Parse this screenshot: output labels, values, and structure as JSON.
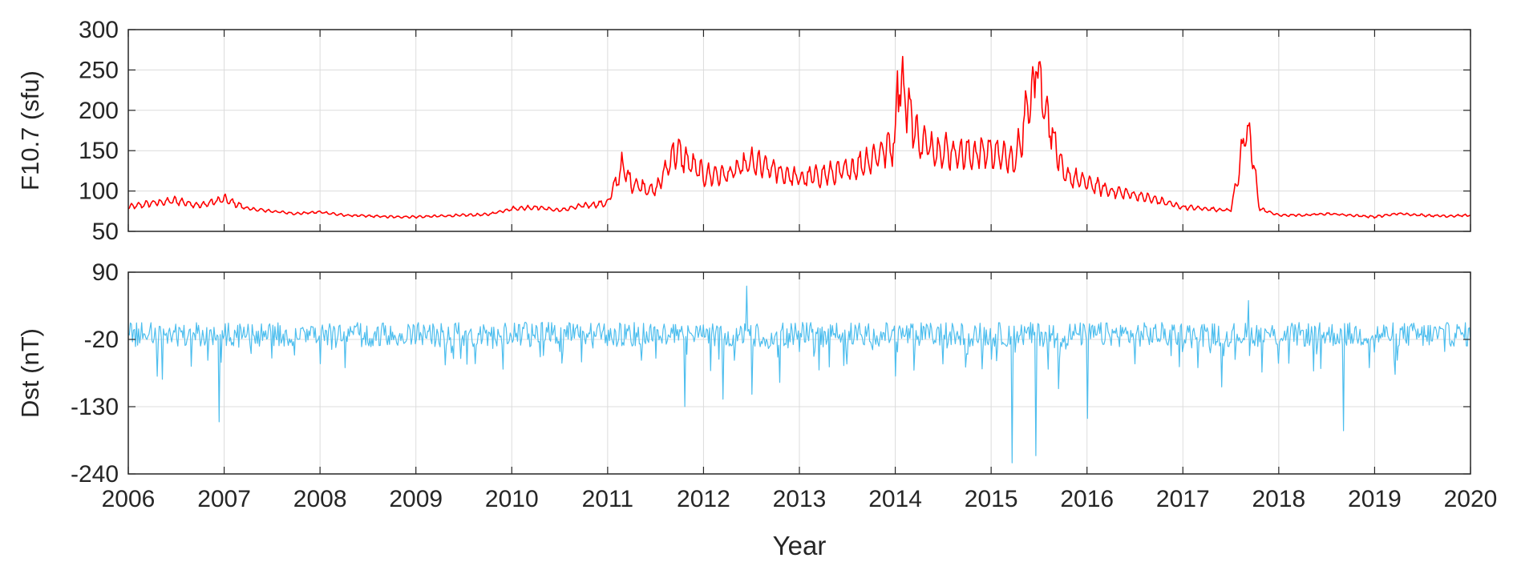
{
  "chart_data": [
    {
      "type": "line",
      "ylabel": "F10.7 (sfu)",
      "xlabel": "",
      "xlim": [
        2006,
        2020
      ],
      "ylim": [
        50,
        300
      ],
      "xticks": [
        2006,
        2007,
        2008,
        2009,
        2010,
        2011,
        2012,
        2013,
        2014,
        2015,
        2016,
        2017,
        2018,
        2019,
        2020
      ],
      "yticks": [
        50,
        100,
        150,
        200,
        250,
        300
      ],
      "ytick_labels": [
        "50",
        "100",
        "150",
        "200",
        "250",
        "300"
      ],
      "grid": true,
      "series": [
        {
          "color": "#ff0000",
          "x": [
            2006.0,
            2006.25,
            2006.5,
            2006.75,
            2007.0,
            2007.25,
            2007.5,
            2007.75,
            2008.0,
            2008.25,
            2008.5,
            2008.75,
            2009.0,
            2009.25,
            2009.5,
            2009.75,
            2010.0,
            2010.25,
            2010.5,
            2010.75,
            2011.0,
            2011.15,
            2011.25,
            2011.5,
            2011.7,
            2012.0,
            2012.25,
            2012.5,
            2012.75,
            2013.0,
            2013.25,
            2013.5,
            2013.75,
            2014.0,
            2014.02,
            2014.25,
            2014.5,
            2014.8,
            2015.0,
            2015.25,
            2015.47,
            2015.75,
            2016.0,
            2016.25,
            2016.5,
            2016.75,
            2017.0,
            2017.25,
            2017.5,
            2017.68,
            2017.8,
            2018.0,
            2018.25,
            2018.5,
            2018.75,
            2019.0,
            2019.25,
            2019.5,
            2019.75,
            2020.0
          ],
          "y": [
            80,
            85,
            88,
            82,
            90,
            78,
            75,
            72,
            74,
            70,
            69,
            68,
            68,
            69,
            70,
            71,
            78,
            80,
            76,
            82,
            85,
            130,
            110,
            100,
            150,
            120,
            120,
            135,
            125,
            115,
            120,
            125,
            140,
            160,
            250,
            160,
            150,
            145,
            150,
            135,
            250,
            120,
            110,
            100,
            95,
            88,
            80,
            78,
            76,
            185,
            78,
            70,
            70,
            72,
            70,
            68,
            72,
            70,
            69,
            70
          ]
        }
      ]
    },
    {
      "type": "line",
      "ylabel": "Dst (nT)",
      "xlabel": "Year",
      "xlim": [
        2006,
        2020
      ],
      "ylim": [
        -240,
        90
      ],
      "xticks": [
        2006,
        2007,
        2008,
        2009,
        2010,
        2011,
        2012,
        2013,
        2014,
        2015,
        2016,
        2017,
        2018,
        2019,
        2020
      ],
      "xtick_labels": [
        "2006",
        "2007",
        "2008",
        "2009",
        "2010",
        "2011",
        "2012",
        "2013",
        "2014",
        "2015",
        "2016",
        "2017",
        "2018",
        "2019",
        "2020"
      ],
      "yticks": [
        -240,
        -130,
        -20,
        90
      ],
      "ytick_labels": [
        "-240",
        "-130",
        "-20",
        "90"
      ],
      "grid": true,
      "series": [
        {
          "color": "#4dbeee",
          "x": [
            2006.0,
            2006.1,
            2006.3,
            2006.95,
            2007.5,
            2008.0,
            2008.5,
            2009.0,
            2009.5,
            2010.0,
            2010.5,
            2011.0,
            2011.5,
            2011.8,
            2012.2,
            2012.45,
            2012.5,
            2012.8,
            2013.0,
            2013.2,
            2013.5,
            2014.0,
            2014.2,
            2014.5,
            2015.0,
            2015.22,
            2015.47,
            2015.7,
            2016.0,
            2016.5,
            2017.0,
            2017.4,
            2017.68,
            2018.0,
            2018.68,
            2019.0,
            2019.5,
            2020.0
          ],
          "y": [
            -10,
            -30,
            -80,
            -155,
            -50,
            -60,
            -25,
            -20,
            -30,
            -15,
            -40,
            -30,
            -50,
            -130,
            -120,
            70,
            -110,
            -90,
            -40,
            -70,
            -60,
            -80,
            -70,
            -60,
            -50,
            -223,
            -210,
            -100,
            -150,
            -60,
            -40,
            -100,
            45,
            -60,
            -170,
            -40,
            -30,
            -20
          ]
        }
      ]
    }
  ]
}
